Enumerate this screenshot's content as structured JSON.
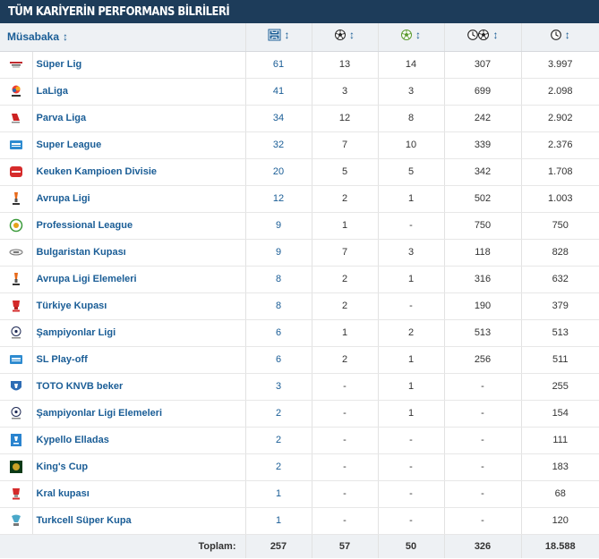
{
  "header": {
    "title": "TÜM KARİYERİN PERFORMANS BİLRİLERİ"
  },
  "columns": {
    "competition": "Müsabaka",
    "sort_glyph": "↕",
    "icons": [
      "lineup-icon",
      "goal-icon",
      "assist-icon",
      "minutes-per-goal-icon",
      "minutes-icon"
    ]
  },
  "colors": {
    "header_bg": "#1d3c5a",
    "link": "#1a5d96",
    "footer_bg": "#eef1f4"
  },
  "rows": [
    {
      "name": "Süper Lig",
      "logo": "super-lig-logo-icon",
      "apps": "61",
      "goals": "13",
      "assists": "14",
      "mpg": "307",
      "minutes": "3.997"
    },
    {
      "name": "LaLiga",
      "logo": "laliga-logo-icon",
      "apps": "41",
      "goals": "3",
      "assists": "3",
      "mpg": "699",
      "minutes": "2.098"
    },
    {
      "name": "Parva Liga",
      "logo": "parva-liga-logo-icon",
      "apps": "34",
      "goals": "12",
      "assists": "8",
      "mpg": "242",
      "minutes": "2.902"
    },
    {
      "name": "Super League",
      "logo": "super-league-logo-icon",
      "apps": "32",
      "goals": "7",
      "assists": "10",
      "mpg": "339",
      "minutes": "2.376"
    },
    {
      "name": "Keuken Kampioen Divisie",
      "logo": "keuken-kampioen-divisie-logo-icon",
      "apps": "20",
      "goals": "5",
      "assists": "5",
      "mpg": "342",
      "minutes": "1.708"
    },
    {
      "name": "Avrupa Ligi",
      "logo": "europa-league-logo-icon",
      "apps": "12",
      "goals": "2",
      "assists": "1",
      "mpg": "502",
      "minutes": "1.003"
    },
    {
      "name": "Professional League",
      "logo": "professional-league-logo-icon",
      "apps": "9",
      "goals": "1",
      "assists": "-",
      "mpg": "750",
      "minutes": "750"
    },
    {
      "name": "Bulgaristan Kupası",
      "logo": "bulgarian-cup-logo-icon",
      "apps": "9",
      "goals": "7",
      "assists": "3",
      "mpg": "118",
      "minutes": "828"
    },
    {
      "name": "Avrupa Ligi Elemeleri",
      "logo": "europa-league-qualifying-logo-icon",
      "apps": "8",
      "goals": "2",
      "assists": "1",
      "mpg": "316",
      "minutes": "632"
    },
    {
      "name": "Türkiye Kupası",
      "logo": "turkish-cup-logo-icon",
      "apps": "8",
      "goals": "2",
      "assists": "-",
      "mpg": "190",
      "minutes": "379"
    },
    {
      "name": "Şampiyonlar Ligi",
      "logo": "champions-league-logo-icon",
      "apps": "6",
      "goals": "1",
      "assists": "2",
      "mpg": "513",
      "minutes": "513"
    },
    {
      "name": "SL Play-off",
      "logo": "sl-play-off-logo-icon",
      "apps": "6",
      "goals": "2",
      "assists": "1",
      "mpg": "256",
      "minutes": "511"
    },
    {
      "name": "TOTO KNVB beker",
      "logo": "knvb-beker-logo-icon",
      "apps": "3",
      "goals": "-",
      "assists": "1",
      "mpg": "-",
      "minutes": "255"
    },
    {
      "name": "Şampiyonlar Ligi Elemeleri",
      "logo": "champions-league-qualifying-logo-icon",
      "apps": "2",
      "goals": "-",
      "assists": "1",
      "mpg": "-",
      "minutes": "154"
    },
    {
      "name": "Kypello Elladas",
      "logo": "kypello-elladas-logo-icon",
      "apps": "2",
      "goals": "-",
      "assists": "-",
      "mpg": "-",
      "minutes": "111"
    },
    {
      "name": "King's Cup",
      "logo": "kings-cup-logo-icon",
      "apps": "2",
      "goals": "-",
      "assists": "-",
      "mpg": "-",
      "minutes": "183"
    },
    {
      "name": "Kral kupası",
      "logo": "kral-kupasi-logo-icon",
      "apps": "1",
      "goals": "-",
      "assists": "-",
      "mpg": "-",
      "minutes": "68"
    },
    {
      "name": "Turkcell Süper Kupa",
      "logo": "turkcell-super-kupa-logo-icon",
      "apps": "1",
      "goals": "-",
      "assists": "-",
      "mpg": "-",
      "minutes": "120"
    }
  ],
  "totals": {
    "label": "Toplam:",
    "apps": "257",
    "goals": "57",
    "assists": "50",
    "mpg": "326",
    "minutes": "18.588"
  }
}
